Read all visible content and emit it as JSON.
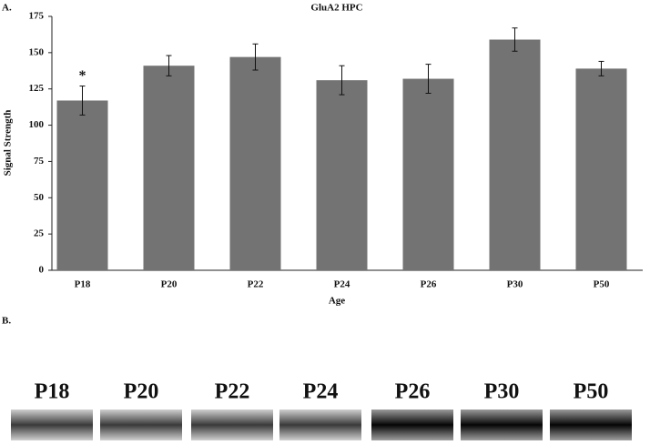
{
  "panel_labels": [
    "A.",
    "B."
  ],
  "chart_data": {
    "type": "bar",
    "title": "GluA2 HPC",
    "x_label": "Age",
    "y_label": "Signal Strength",
    "categories": [
      "P18",
      "P20",
      "P22",
      "P24",
      "P26",
      "P30",
      "P50"
    ],
    "series": [
      {
        "color": "#737373",
        "values": [
          117,
          141,
          147,
          131,
          132,
          159,
          139
        ],
        "errors": [
          10,
          7,
          9,
          10,
          10,
          8,
          5
        ]
      }
    ],
    "annotations": [
      {
        "category": "P18",
        "text": "*"
      }
    ],
    "ylim": [
      0,
      175
    ],
    "yticks": [
      0,
      25,
      50,
      75,
      100,
      125,
      150,
      175
    ],
    "grid": false
  },
  "blot": {
    "lanes": [
      "P18",
      "P20",
      "P22",
      "P24",
      "P26",
      "P30",
      "P50"
    ]
  }
}
